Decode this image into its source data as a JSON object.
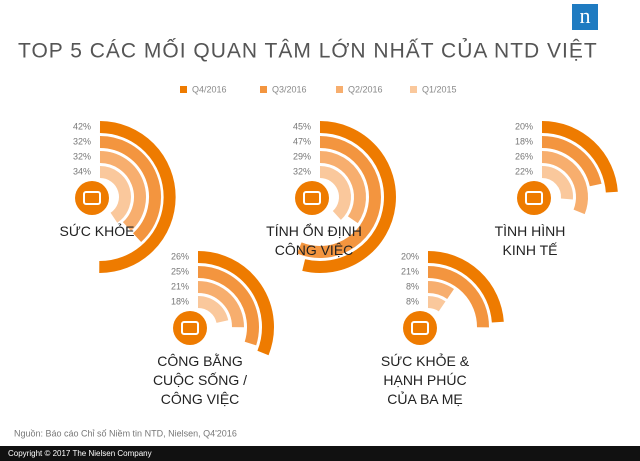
{
  "chart_data": {
    "type": "radial_bar",
    "title": "TOP 5 CÁC MỐI QUAN TÂM LỚN NHẤT CỦA NTD VIỆT",
    "categories": [
      "SỨC KHỎE",
      "TÍNH ỔN ĐỊNH\nCÔNG VIỆC",
      "TÌNH HÌNH\nKINH TẾ",
      "CÔNG BẰNG\nCUỘC SỐNG /\nCÔNG VIỆC",
      "SỨC KHỎE &\nHẠNH PHÚC\nCỦA BA MẸ"
    ],
    "series": [
      {
        "name": "Q4/2016",
        "color": "#ee7b00",
        "values": [
          42,
          45,
          20,
          26,
          20
        ],
        "value_labels": [
          "42%",
          "45%",
          "20%",
          "26%",
          "20%"
        ]
      },
      {
        "name": "Q3/2016",
        "color": "#f3953f",
        "values": [
          32,
          47,
          18,
          25,
          21
        ],
        "value_labels": [
          "32%",
          "47%",
          "18%",
          "25%",
          "21%"
        ]
      },
      {
        "name": "Q2/2016",
        "color": "#f7ae6e",
        "values": [
          32,
          29,
          26,
          21,
          8
        ],
        "value_labels": [
          "32%",
          "29%",
          "26%",
          "21%",
          "8%"
        ]
      },
      {
        "name": "Q1/2015",
        "color": "#fac89c",
        "values": [
          34,
          32,
          22,
          18,
          8
        ],
        "value_labels": [
          "34%",
          "32%",
          "22%",
          "18%",
          "8%"
        ]
      }
    ]
  },
  "source": "Nguồn: Báo cáo Chỉ số Niềm tin NTD, Nielsen, Q4'2016",
  "copyright": "Copyright © 2017 The Nielsen Company",
  "logo": "n"
}
